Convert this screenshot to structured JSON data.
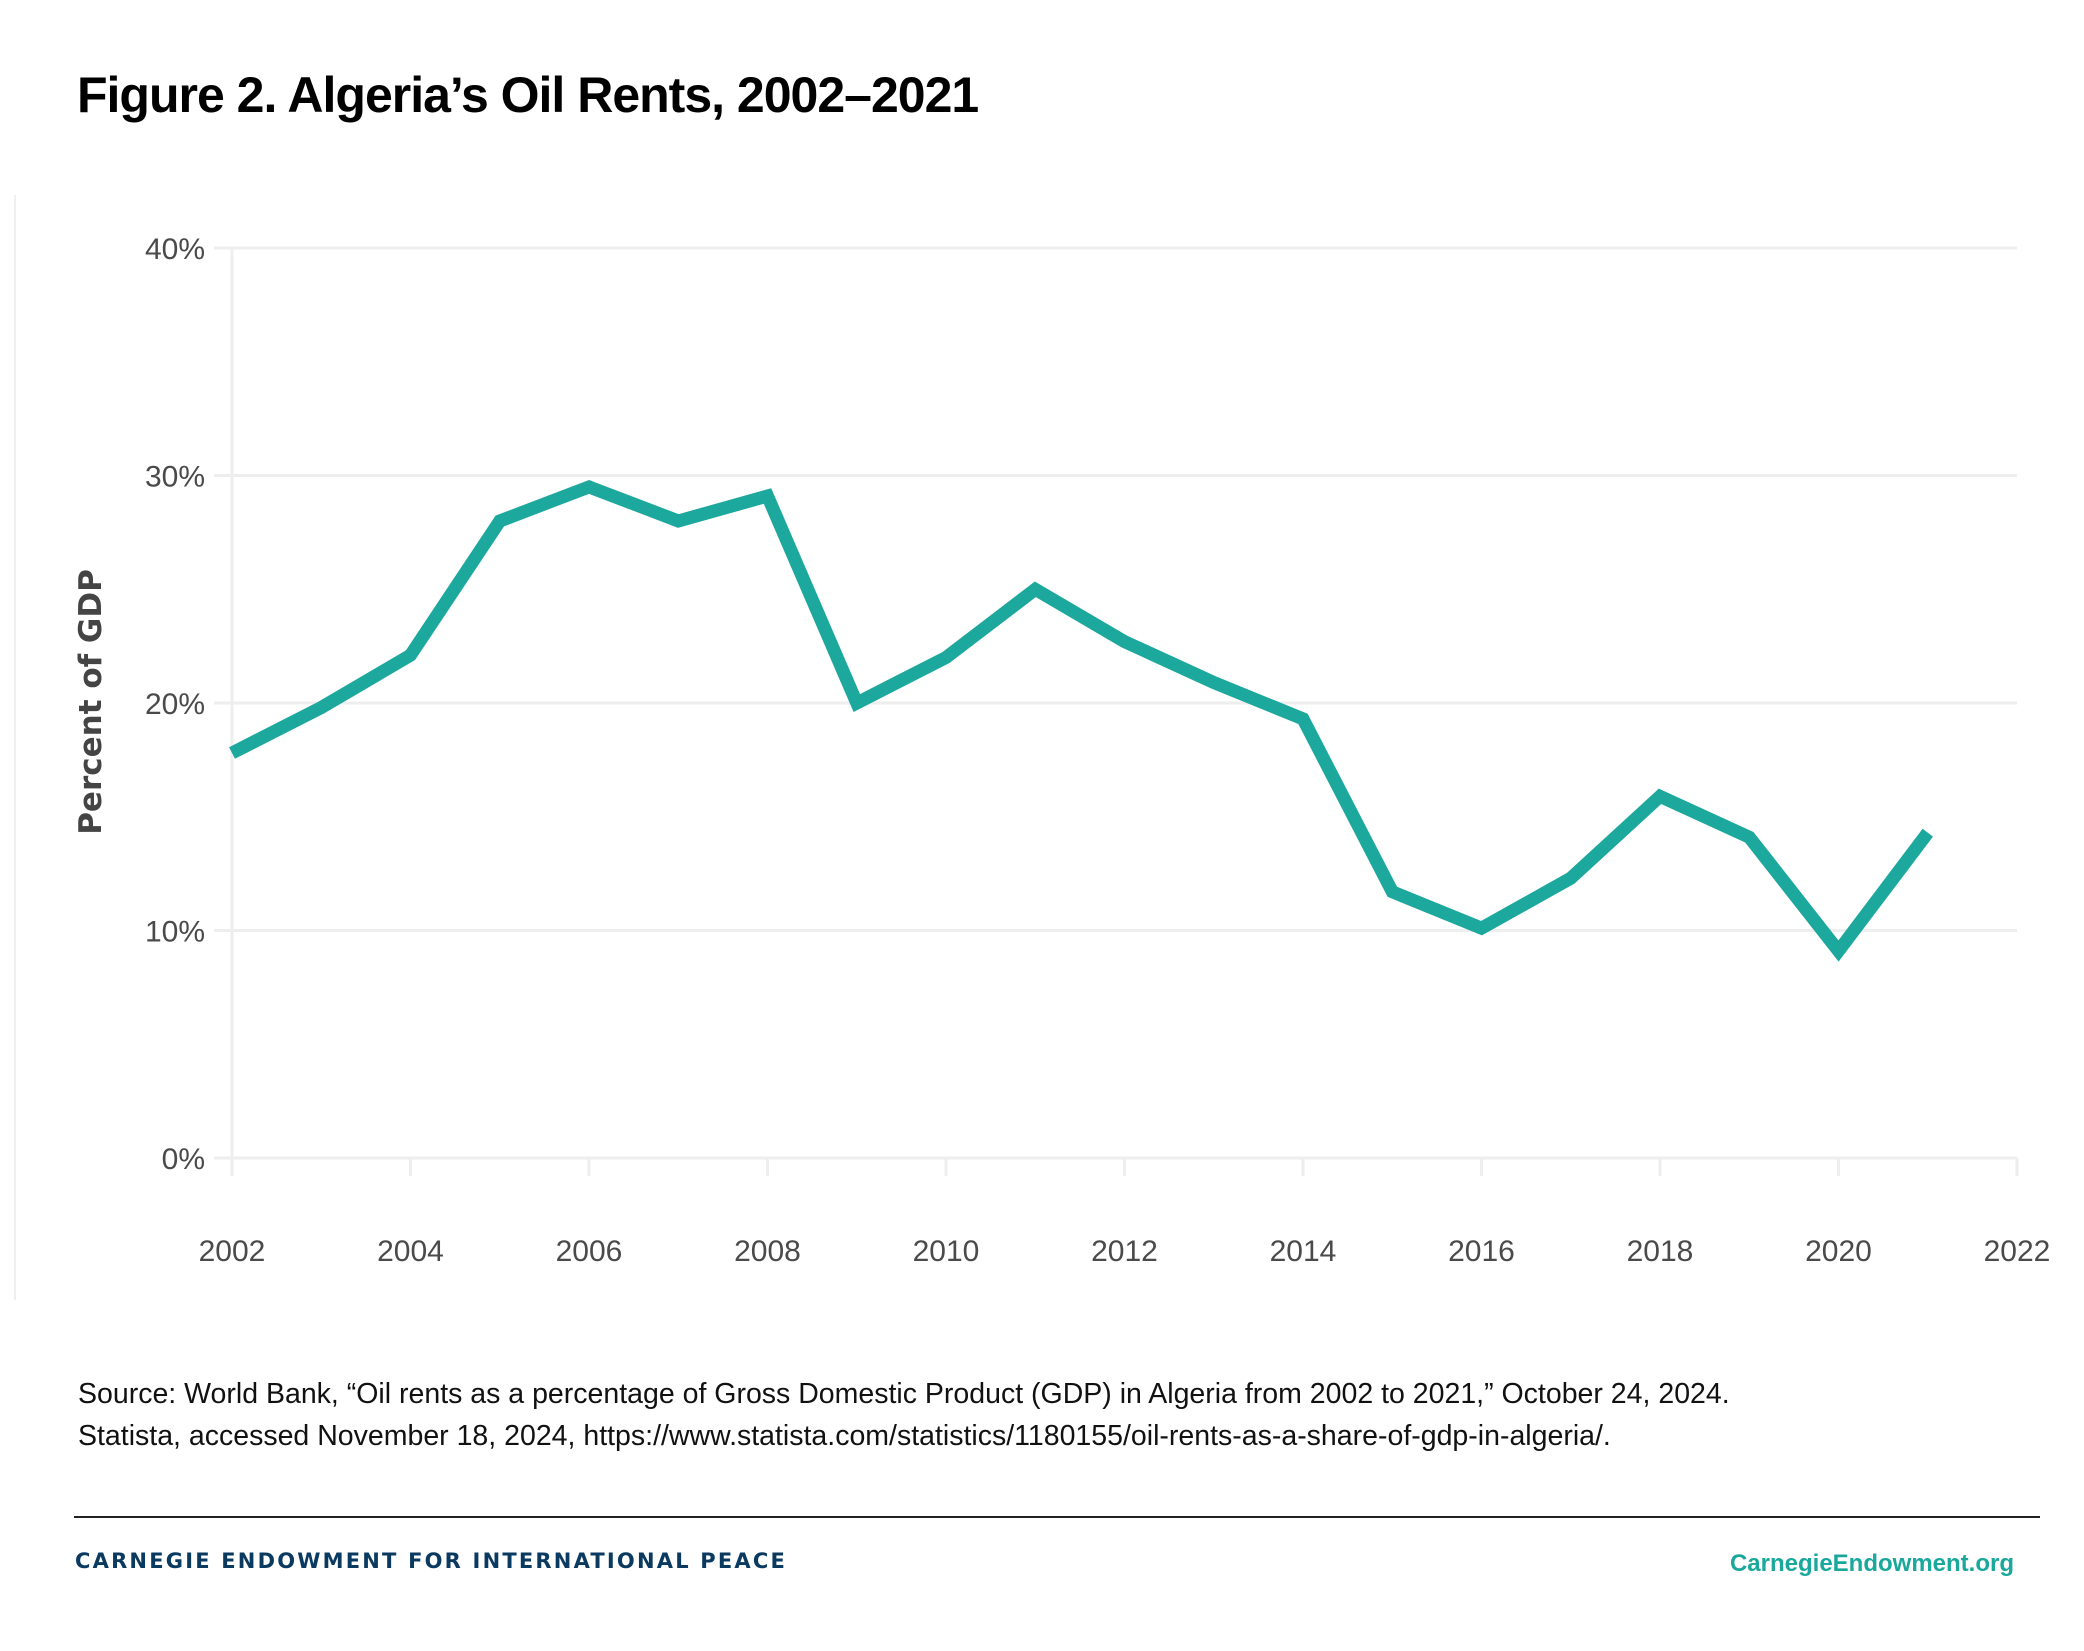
{
  "header": {
    "title": "Figure 2. Algeria’s Oil Rents, 2002–2021"
  },
  "chart_data": {
    "type": "line",
    "title": "Figure 2. Algeria’s Oil Rents, 2002–2021",
    "xlabel": "",
    "ylabel": "Percent of GDP",
    "xlim": [
      2002,
      2022
    ],
    "ylim": [
      0,
      40
    ],
    "grid": true,
    "x_ticks": [
      2002,
      2004,
      2006,
      2008,
      2010,
      2012,
      2014,
      2016,
      2018,
      2020,
      2022
    ],
    "x_tick_labels": [
      "2002",
      "2004",
      "2006",
      "2008",
      "2010",
      "2012",
      "2014",
      "2016",
      "2018",
      "2020",
      "2022"
    ],
    "y_ticks": [
      0,
      10,
      20,
      30,
      40
    ],
    "y_tick_labels": [
      "0%",
      "10%",
      "20%",
      "30%",
      "40%"
    ],
    "series": [
      {
        "name": "Oil rents (% of GDP)",
        "color": "#1ca89d",
        "x": [
          2002,
          2003,
          2004,
          2005,
          2006,
          2007,
          2008,
          2009,
          2010,
          2011,
          2012,
          2013,
          2014,
          2015,
          2016,
          2017,
          2018,
          2019,
          2020,
          2021
        ],
        "values": [
          17.8,
          19.8,
          22.1,
          28.0,
          29.5,
          28.0,
          29.1,
          20.0,
          22.0,
          25.0,
          22.7,
          20.9,
          19.3,
          11.7,
          10.1,
          12.3,
          15.9,
          14.1,
          9.1,
          14.3
        ]
      }
    ]
  },
  "source": {
    "line1": "Source: World Bank, “Oil rents as a percentage of Gross Domestic Product (GDP) in Algeria from 2002 to 2021,” October 24, 2024.",
    "line2": "Statista, accessed November 18, 2024, https://www.statista.com/statistics/1180155/oil-rents-as-a-share-of-gdp-in-algeria/."
  },
  "footer": {
    "brand": "CARNEGIE ENDOWMENT FOR INTERNATIONAL PEACE",
    "website": "CarnegieEndowment.org",
    "brand_color": "#0b3a61",
    "accent_color": "#1ba89c"
  }
}
